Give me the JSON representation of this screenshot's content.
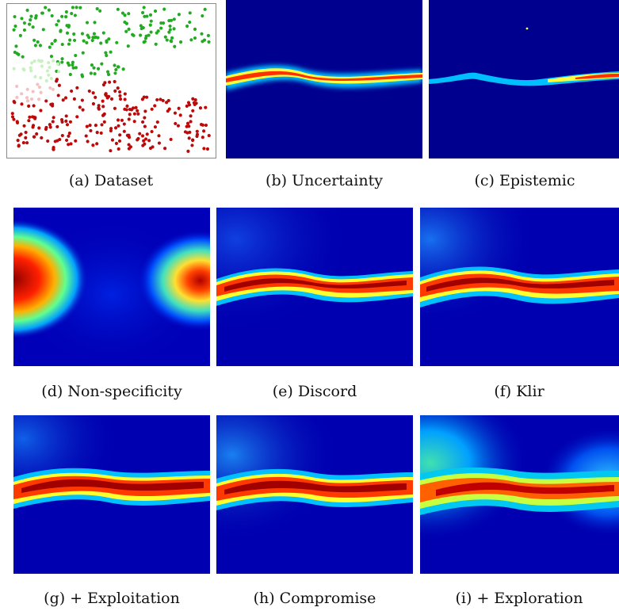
{
  "figure": {
    "panels": [
      {
        "id": "a",
        "caption": "(a) Dataset"
      },
      {
        "id": "b",
        "caption": "(b) Uncertainty"
      },
      {
        "id": "c",
        "caption": "(c) Epistemic"
      },
      {
        "id": "d",
        "caption": "(d) Non-specificity"
      },
      {
        "id": "e",
        "caption": "(e) Discord"
      },
      {
        "id": "f",
        "caption": "(f) Klir"
      },
      {
        "id": "g",
        "caption": "(g) + Exploitation"
      },
      {
        "id": "h",
        "caption": "(h) Compromise"
      },
      {
        "id": "i",
        "caption": "(i) + Exploration"
      }
    ],
    "colors": {
      "class_green": "#22aa22",
      "class_red": "#bb0a0a",
      "class_light_green": "#c8f0c0",
      "class_light_red": "#f4c0c0",
      "heat_low": "#00008f",
      "heat_high": "#8f0000"
    }
  }
}
